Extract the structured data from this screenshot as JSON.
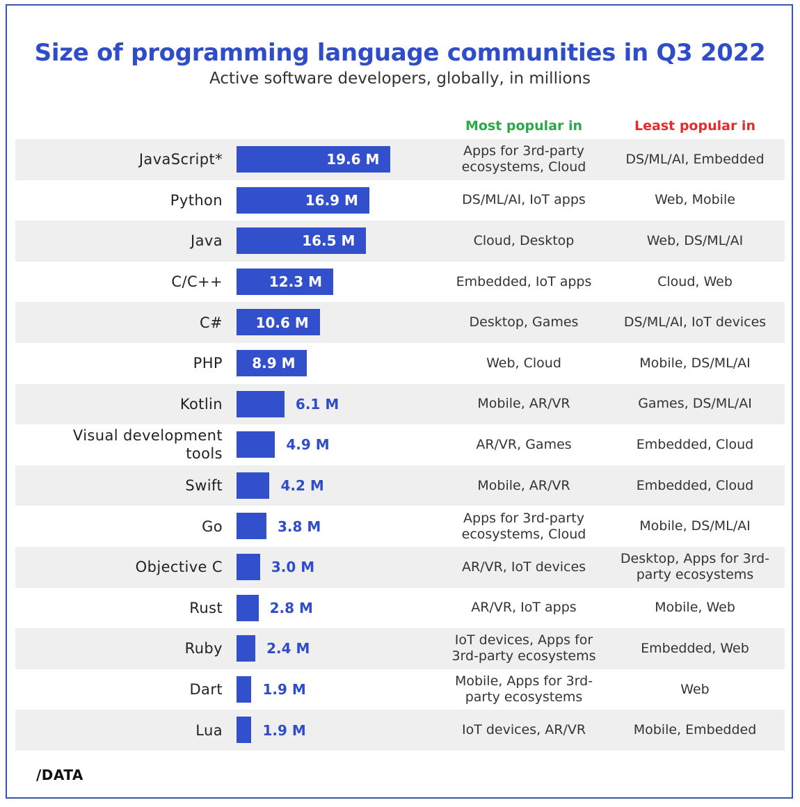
{
  "chart_data": {
    "type": "bar",
    "orientation": "horizontal",
    "title": "Size of programming language communities in Q3 2022",
    "subtitle": "Active software developers, globally, in millions",
    "headers": {
      "most": "Most popular in",
      "least": "Least popular in"
    },
    "categories": [
      "JavaScript*",
      "Python",
      "Java",
      "C/C++",
      "C#",
      "PHP",
      "Kotlin",
      "Visual development tools",
      "Swift",
      "Go",
      "Objective C",
      "Rust",
      "Ruby",
      "Dart",
      "Lua"
    ],
    "values": [
      19.6,
      16.9,
      16.5,
      12.3,
      10.6,
      8.9,
      6.1,
      4.9,
      4.2,
      3.8,
      3.0,
      2.8,
      2.4,
      1.9,
      1.9
    ],
    "value_labels": [
      "19.6 M",
      "16.9 M",
      "16.5 M",
      "12.3 M",
      "10.6 M",
      "8.9 M",
      "6.1 M",
      "4.9 M",
      "4.2 M",
      "3.8 M",
      "3.0 M",
      "2.8 M",
      "2.4 M",
      "1.9 M",
      "1.9 M"
    ],
    "most_popular_in": [
      "Apps for 3rd-party ecosystems, Cloud",
      "DS/ML/AI, IoT apps",
      "Cloud, Desktop",
      "Embedded, IoT apps",
      "Desktop, Games",
      "Web, Cloud",
      "Mobile, AR/VR",
      "AR/VR, Games",
      "Mobile, AR/VR",
      "Apps for 3rd-party ecosystems, Cloud",
      "AR/VR, IoT devices",
      "AR/VR, IoT apps",
      "IoT devices, Apps for 3rd-party ecosystems",
      "Mobile, Apps for 3rd-party ecosystems",
      "IoT devices, AR/VR"
    ],
    "least_popular_in": [
      "DS/ML/AI, Embedded",
      "Web, Mobile",
      "Web, DS/ML/AI",
      "Cloud, Web",
      "DS/ML/AI, IoT devices",
      "Mobile, DS/ML/AI",
      "Games, DS/ML/AI",
      "Embedded, Cloud",
      "Embedded, Cloud",
      "Mobile, DS/ML/AI",
      "Desktop, Apps for 3rd-party ecosystems",
      "Mobile, Web",
      "Embedded, Web",
      "Web",
      "Mobile, Embedded"
    ],
    "xlim": [
      0,
      20
    ],
    "grid": false,
    "legend": "none",
    "colors": {
      "bar": "#3350cc",
      "title": "#2f4cc9",
      "most": "#2aa84a",
      "least": "#e52b2b"
    }
  },
  "logo": {
    "text": "/DATA"
  }
}
